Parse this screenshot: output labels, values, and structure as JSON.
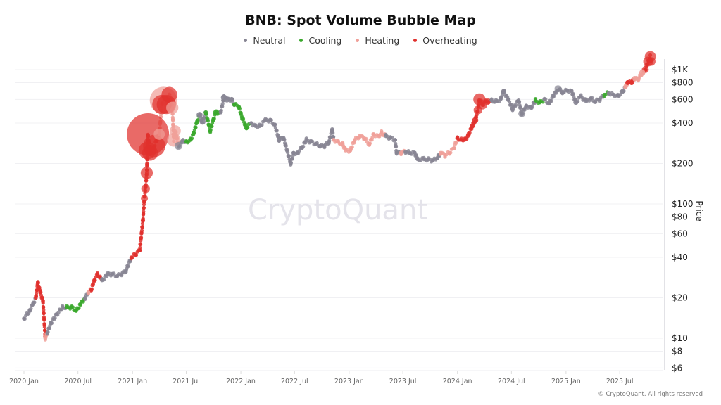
{
  "chart_data": {
    "type": "scatter",
    "title": "BNB: Spot Volume Bubble Map",
    "ylabel": "Price",
    "xlabel": "",
    "yscale": "log",
    "ylim": [
      6,
      1200
    ],
    "xlim": [
      "2019-12-20",
      "2025-10-31"
    ],
    "grid": true,
    "legend_position": "top",
    "y_ticks": [
      "$1K",
      "$800",
      "$600",
      "$400",
      "$200",
      "$100",
      "$80",
      "$60",
      "$40",
      "$20",
      "$10",
      "$8",
      "$6"
    ],
    "y_tick_values": [
      1000,
      800,
      600,
      400,
      200,
      100,
      80,
      60,
      40,
      20,
      10,
      8,
      6
    ],
    "x_ticks": [
      "2020 Jan",
      "2020 Jul",
      "2021 Jan",
      "2021 Jul",
      "2022 Jan",
      "2022 Jul",
      "2023 Jan",
      "2023 Jul",
      "2024 Jan",
      "2024 Jul",
      "2025 Jan",
      "2025 Jul"
    ],
    "x_tick_dates": [
      "2020-01-01",
      "2020-07-01",
      "2021-01-01",
      "2021-07-01",
      "2022-01-01",
      "2022-07-01",
      "2023-01-01",
      "2023-07-01",
      "2024-01-01",
      "2024-07-01",
      "2025-01-01",
      "2025-07-01"
    ],
    "series": [
      {
        "name": "Neutral",
        "key": "n",
        "color": "#878593"
      },
      {
        "name": "Cooling",
        "key": "c",
        "color": "#3aa82c"
      },
      {
        "name": "Heating",
        "key": "h",
        "color": "#f0a099"
      },
      {
        "name": "Overheating",
        "key": "o",
        "color": "#e0302d"
      }
    ],
    "points_format": [
      "date",
      "price",
      "state",
      "relative_volume"
    ],
    "points": [
      [
        "2020-01-01",
        14,
        "n",
        1
      ],
      [
        "2020-01-20",
        16,
        "n",
        1
      ],
      [
        "2020-02-01",
        18,
        "n",
        1
      ],
      [
        "2020-02-10",
        20,
        "o",
        1
      ],
      [
        "2020-02-17",
        26,
        "o",
        1.2
      ],
      [
        "2020-02-25",
        22,
        "o",
        1
      ],
      [
        "2020-03-05",
        19,
        "o",
        1
      ],
      [
        "2020-03-13",
        10,
        "h",
        1
      ],
      [
        "2020-03-20",
        11,
        "n",
        1
      ],
      [
        "2020-04-01",
        13,
        "n",
        1
      ],
      [
        "2020-04-20",
        15,
        "n",
        1
      ],
      [
        "2020-05-10",
        17,
        "n",
        1
      ],
      [
        "2020-05-25",
        17,
        "c",
        1
      ],
      [
        "2020-06-10",
        17,
        "c",
        1
      ],
      [
        "2020-06-25",
        16,
        "c",
        1
      ],
      [
        "2020-07-10",
        18,
        "c",
        1
      ],
      [
        "2020-07-25",
        20,
        "n",
        1
      ],
      [
        "2020-08-05",
        22,
        "h",
        1
      ],
      [
        "2020-08-15",
        23,
        "o",
        1
      ],
      [
        "2020-08-25",
        27,
        "o",
        1
      ],
      [
        "2020-09-05",
        30,
        "o",
        1
      ],
      [
        "2020-09-20",
        27,
        "n",
        1
      ],
      [
        "2020-10-10",
        30,
        "n",
        1
      ],
      [
        "2020-10-25",
        30,
        "n",
        1
      ],
      [
        "2020-11-10",
        29,
        "n",
        1
      ],
      [
        "2020-11-25",
        30,
        "n",
        1
      ],
      [
        "2020-12-10",
        32,
        "n",
        1
      ],
      [
        "2020-12-28",
        40,
        "o",
        1.2
      ],
      [
        "2021-01-10",
        42,
        "o",
        1.2
      ],
      [
        "2021-01-25",
        45,
        "o",
        1.2
      ],
      [
        "2021-02-05",
        75,
        "o",
        1.5
      ],
      [
        "2021-02-10",
        110,
        "o",
        4
      ],
      [
        "2021-02-14",
        130,
        "o",
        6
      ],
      [
        "2021-02-18",
        170,
        "o",
        12
      ],
      [
        "2021-02-20",
        250,
        "o",
        25
      ],
      [
        "2021-02-22",
        330,
        "o",
        144
      ],
      [
        "2021-03-01",
        240,
        "o",
        20
      ],
      [
        "2021-03-15",
        270,
        "o",
        40
      ],
      [
        "2021-04-01",
        330,
        "h",
        10
      ],
      [
        "2021-04-10",
        550,
        "o",
        30
      ],
      [
        "2021-04-15",
        590,
        "h",
        60
      ],
      [
        "2021-04-25",
        550,
        "o",
        30
      ],
      [
        "2021-05-05",
        650,
        "o",
        20
      ],
      [
        "2021-05-15",
        520,
        "h",
        12
      ],
      [
        "2021-05-20",
        300,
        "h",
        15
      ],
      [
        "2021-05-25",
        350,
        "h",
        10
      ],
      [
        "2021-06-05",
        270,
        "n",
        5
      ],
      [
        "2021-06-20",
        300,
        "n",
        1
      ],
      [
        "2021-07-01",
        290,
        "c",
        1
      ],
      [
        "2021-07-15",
        300,
        "c",
        1
      ],
      [
        "2021-07-25",
        330,
        "c",
        1
      ],
      [
        "2021-08-05",
        400,
        "c",
        1
      ],
      [
        "2021-08-15",
        460,
        "n",
        3
      ],
      [
        "2021-08-25",
        410,
        "n",
        3
      ],
      [
        "2021-09-05",
        480,
        "c",
        1.5
      ],
      [
        "2021-09-20",
        350,
        "c",
        1
      ],
      [
        "2021-10-01",
        430,
        "c",
        1
      ],
      [
        "2021-10-10",
        480,
        "c",
        3
      ],
      [
        "2021-10-25",
        480,
        "n",
        1
      ],
      [
        "2021-11-05",
        620,
        "n",
        3
      ],
      [
        "2021-11-15",
        600,
        "n",
        3
      ],
      [
        "2021-12-01",
        600,
        "n",
        2
      ],
      [
        "2021-12-10",
        550,
        "c",
        1
      ],
      [
        "2021-12-25",
        530,
        "c",
        1
      ],
      [
        "2022-01-05",
        440,
        "c",
        1
      ],
      [
        "2022-01-20",
        370,
        "c",
        2
      ],
      [
        "2022-02-05",
        400,
        "n",
        1
      ],
      [
        "2022-02-20",
        380,
        "n",
        1
      ],
      [
        "2022-03-05",
        380,
        "n",
        1
      ],
      [
        "2022-03-25",
        420,
        "n",
        1
      ],
      [
        "2022-04-10",
        420,
        "n",
        1
      ],
      [
        "2022-04-25",
        390,
        "n",
        1
      ],
      [
        "2022-05-10",
        300,
        "n",
        2
      ],
      [
        "2022-05-25",
        310,
        "n",
        1
      ],
      [
        "2022-06-18",
        200,
        "n",
        1
      ],
      [
        "2022-06-28",
        240,
        "n",
        1
      ],
      [
        "2022-07-10",
        240,
        "n",
        1
      ],
      [
        "2022-07-25",
        260,
        "n",
        1
      ],
      [
        "2022-08-10",
        300,
        "n",
        1
      ],
      [
        "2022-08-25",
        290,
        "n",
        1
      ],
      [
        "2022-09-10",
        280,
        "n",
        1
      ],
      [
        "2022-09-25",
        270,
        "n",
        1
      ],
      [
        "2022-10-10",
        270,
        "n",
        1
      ],
      [
        "2022-10-25",
        290,
        "n",
        1
      ],
      [
        "2022-11-05",
        360,
        "n",
        1
      ],
      [
        "2022-11-10",
        300,
        "h",
        1
      ],
      [
        "2022-11-25",
        290,
        "h",
        1
      ],
      [
        "2022-12-10",
        280,
        "h",
        1
      ],
      [
        "2022-12-20",
        250,
        "h",
        1
      ],
      [
        "2023-01-05",
        250,
        "h",
        1
      ],
      [
        "2023-01-20",
        300,
        "h",
        1
      ],
      [
        "2023-02-05",
        320,
        "h",
        1
      ],
      [
        "2023-02-20",
        310,
        "h",
        1
      ],
      [
        "2023-03-10",
        280,
        "h",
        1
      ],
      [
        "2023-03-25",
        330,
        "h",
        1
      ],
      [
        "2023-04-10",
        320,
        "h",
        1
      ],
      [
        "2023-04-20",
        340,
        "h",
        1
      ],
      [
        "2023-05-05",
        320,
        "n",
        1
      ],
      [
        "2023-05-20",
        310,
        "n",
        1
      ],
      [
        "2023-06-05",
        300,
        "n",
        1
      ],
      [
        "2023-06-10",
        240,
        "n",
        1
      ],
      [
        "2023-06-25",
        240,
        "h",
        1.5
      ],
      [
        "2023-07-10",
        245,
        "n",
        1
      ],
      [
        "2023-07-25",
        240,
        "n",
        1
      ],
      [
        "2023-08-10",
        240,
        "n",
        1
      ],
      [
        "2023-08-20",
        215,
        "n",
        1
      ],
      [
        "2023-09-10",
        215,
        "n",
        1
      ],
      [
        "2023-09-25",
        215,
        "n",
        1
      ],
      [
        "2023-10-10",
        210,
        "n",
        1
      ],
      [
        "2023-10-25",
        220,
        "n",
        1
      ],
      [
        "2023-11-05",
        240,
        "h",
        1
      ],
      [
        "2023-11-20",
        230,
        "h",
        1
      ],
      [
        "2023-12-05",
        240,
        "h",
        1
      ],
      [
        "2023-12-20",
        260,
        "h",
        1
      ],
      [
        "2024-01-01",
        310,
        "o",
        1
      ],
      [
        "2024-01-15",
        300,
        "o",
        1
      ],
      [
        "2024-01-25",
        300,
        "o",
        1
      ],
      [
        "2024-02-05",
        320,
        "o",
        1
      ],
      [
        "2024-02-20",
        380,
        "o",
        2
      ],
      [
        "2024-03-01",
        420,
        "o",
        3
      ],
      [
        "2024-03-10",
        500,
        "o",
        6
      ],
      [
        "2024-03-15",
        600,
        "o",
        12
      ],
      [
        "2024-03-25",
        550,
        "o",
        8
      ],
      [
        "2024-04-10",
        580,
        "o",
        4
      ],
      [
        "2024-04-25",
        590,
        "n",
        1
      ],
      [
        "2024-05-10",
        580,
        "n",
        1
      ],
      [
        "2024-05-25",
        600,
        "n",
        1
      ],
      [
        "2024-06-05",
        690,
        "n",
        2
      ],
      [
        "2024-06-20",
        600,
        "n",
        1
      ],
      [
        "2024-07-05",
        510,
        "n",
        2
      ],
      [
        "2024-07-25",
        590,
        "n",
        1
      ],
      [
        "2024-08-05",
        470,
        "n",
        4
      ],
      [
        "2024-08-20",
        540,
        "n",
        1
      ],
      [
        "2024-09-05",
        520,
        "n",
        1
      ],
      [
        "2024-09-20",
        590,
        "c",
        1
      ],
      [
        "2024-10-05",
        570,
        "c",
        1
      ],
      [
        "2024-10-20",
        600,
        "n",
        1
      ],
      [
        "2024-11-05",
        560,
        "n",
        1
      ],
      [
        "2024-11-20",
        640,
        "n",
        1
      ],
      [
        "2024-12-05",
        720,
        "n",
        4
      ],
      [
        "2024-12-20",
        680,
        "n",
        2
      ],
      [
        "2025-01-05",
        700,
        "n",
        1
      ],
      [
        "2025-01-20",
        690,
        "n",
        1
      ],
      [
        "2025-02-03",
        570,
        "n",
        2
      ],
      [
        "2025-02-20",
        630,
        "n",
        1
      ],
      [
        "2025-03-10",
        580,
        "n",
        1
      ],
      [
        "2025-03-25",
        610,
        "n",
        1
      ],
      [
        "2025-04-10",
        580,
        "n",
        1
      ],
      [
        "2025-04-25",
        600,
        "n",
        1
      ],
      [
        "2025-05-10",
        650,
        "c",
        1
      ],
      [
        "2025-05-25",
        670,
        "n",
        1
      ],
      [
        "2025-06-10",
        650,
        "n",
        1
      ],
      [
        "2025-06-25",
        640,
        "n",
        1
      ],
      [
        "2025-07-10",
        680,
        "n",
        1
      ],
      [
        "2025-07-20",
        740,
        "h",
        1.5
      ],
      [
        "2025-07-28",
        800,
        "o",
        2
      ],
      [
        "2025-08-10",
        800,
        "o",
        2
      ],
      [
        "2025-08-20",
        860,
        "h",
        2
      ],
      [
        "2025-09-01",
        850,
        "h",
        2
      ],
      [
        "2025-09-15",
        950,
        "h",
        3
      ],
      [
        "2025-09-25",
        1000,
        "o",
        4
      ],
      [
        "2025-10-05",
        1150,
        "o",
        8
      ],
      [
        "2025-10-12",
        1250,
        "o",
        10
      ],
      [
        "2025-10-15",
        1150,
        "o",
        6
      ]
    ]
  },
  "watermark": "CryptoQuant",
  "credit": "© CryptoQuant. All rights reserved"
}
